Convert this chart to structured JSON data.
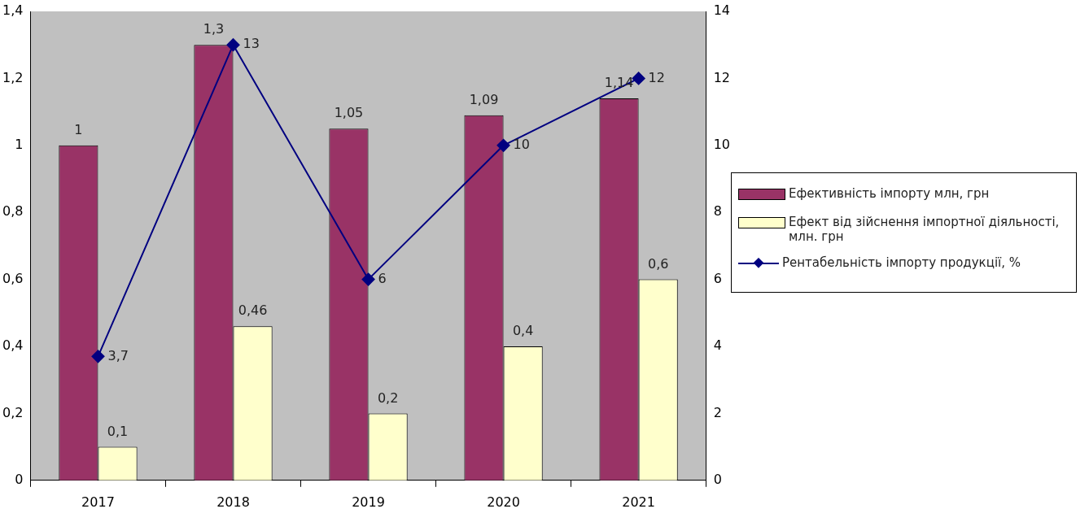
{
  "chart_data": {
    "type": "bar",
    "categories": [
      "2017",
      "2018",
      "2019",
      "2020",
      "2021"
    ],
    "series": [
      {
        "name": "Ефективність імпорту млн, грн",
        "color": "#993366",
        "values": [
          1,
          1.3,
          1.05,
          1.09,
          1.14
        ],
        "value_labels": [
          "1",
          "1,3",
          "1,05",
          "1,09",
          "1,14"
        ]
      },
      {
        "name": "Ефект від зійснення імпортної діяльності, млн. грн",
        "color": "#ffffcc",
        "values": [
          0.1,
          0.46,
          0.2,
          0.4,
          0.6
        ],
        "value_labels": [
          "0,1",
          "0,46",
          "0,2",
          "0,4",
          "0,6"
        ]
      },
      {
        "name": "Рентабельність імпорту продукції, %",
        "type": "line",
        "axis": "y2",
        "color": "#000080",
        "values": [
          3.7,
          13,
          6,
          10,
          12
        ],
        "value_labels": [
          "3,7",
          "13",
          "6",
          "10",
          "12"
        ]
      }
    ],
    "ylim": [
      0,
      1.4
    ],
    "yticks": [
      0,
      {
        "value": 0.2,
        "label": "0,2"
      },
      {
        "value": 0.4,
        "label": "0,4"
      },
      {
        "value": 0.6,
        "label": "0,6"
      },
      {
        "value": 0.8,
        "label": "0,8"
      },
      1,
      {
        "value": 1.2,
        "label": "1,2"
      },
      {
        "value": 1.4,
        "label": "1,4"
      }
    ],
    "y2lim": [
      0,
      14
    ],
    "y2ticks": [
      0,
      2,
      4,
      6,
      8,
      10,
      12,
      14
    ],
    "grid": false,
    "legend": "right",
    "marker": "diamond",
    "line_style": "solid"
  }
}
